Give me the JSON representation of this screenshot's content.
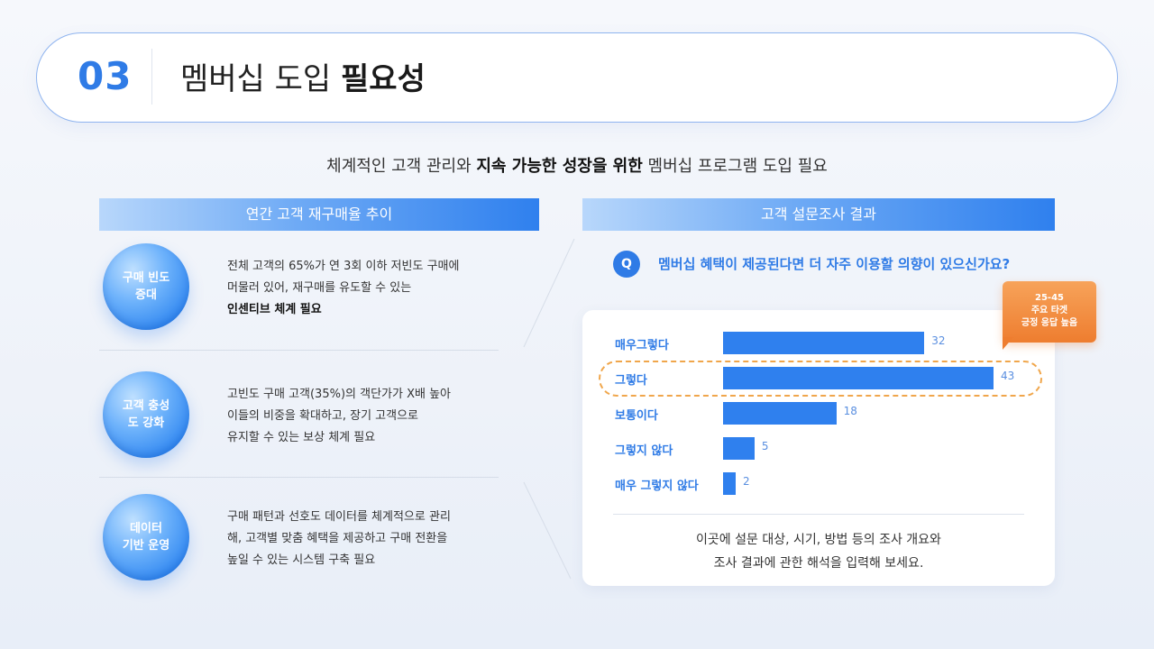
{
  "header": {
    "number": "03",
    "title_regular": "멤버십 도입",
    "title_bold": "필요성"
  },
  "subtitle": {
    "part1": "체계적인 고객 관리와 ",
    "bold": "지속 가능한 성장을 위한",
    "part2": " 멤버십 프로그램 도입 필요"
  },
  "left": {
    "title": "연간 고객 재구매율 추이",
    "items": [
      {
        "circle_line1": "구매 빈도",
        "circle_line2": "증대",
        "text_line1": "전체 고객의 65%가 연 3회 이하 저빈도 구매에",
        "text_line2": "머물러 있어, 재구매를 유도할 수 있는",
        "text_line3": "인센티브 체계 필요"
      },
      {
        "circle_line1": "고객 충성",
        "circle_line2": "도 강화",
        "text_line1": "고빈도 구매 고객(35%)의 객단가가 X배 높아",
        "text_line2": "이들의 비중을 확대하고, 장기 고객으로",
        "text_line3": "유지할 수 있는 보상 체계 필요"
      },
      {
        "circle_line1": "데이터",
        "circle_line2": "기반 운영",
        "text_line1": "구매 패턴과 선호도 데이터를 체계적으로 관리",
        "text_line2": "해, 고객별 맞춤 혜택을 제공하고 구매 전환을",
        "text_line3": "높일 수 있는 시스템 구축 필요"
      }
    ]
  },
  "right": {
    "title": "고객 설문조사 결과",
    "q_badge": "Q",
    "question": "멤버십 혜택이 제공된다면 더 자주 이용할 의향이 있으신가요?",
    "callout": {
      "line1": "25-45",
      "line2": "주요 타겟",
      "line3": "긍정 응답 높음"
    },
    "note_line1": "이곳에 설문 대상, 시기, 방법 등의 조사 개요와",
    "note_line2": "조사 결과에 관한 해석을 입력해 보세요."
  },
  "chart_data": {
    "type": "bar",
    "orientation": "horizontal",
    "categories": [
      "매우그렇다",
      "그렇다",
      "보통이다",
      "그렇지 않다",
      "매우 그렇지 않다"
    ],
    "values": [
      32,
      43,
      18,
      5,
      2
    ],
    "highlight_category": "그렇다",
    "bar_color": "#2f80ee"
  }
}
